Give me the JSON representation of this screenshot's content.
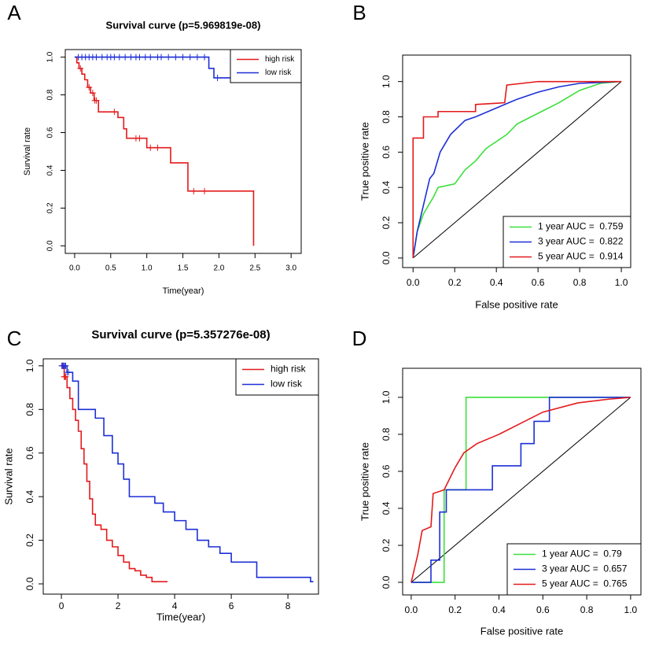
{
  "chart_data": [
    {
      "type": "survival",
      "panel_label": "A",
      "title": "Survival curve (p=5.969819e-08)",
      "xlabel": "Time(year)",
      "ylabel": "Survival rate",
      "xlim": [
        -0.13,
        3.14
      ],
      "ylim": [
        -0.04,
        1.04
      ],
      "xticks": [
        {
          "value": 0,
          "label": "0.0"
        },
        {
          "value": 0.5,
          "label": "0.5"
        },
        {
          "value": 1,
          "label": "1.0"
        },
        {
          "value": 1.5,
          "label": "1.5"
        },
        {
          "value": 2,
          "label": "2.0"
        },
        {
          "value": 2.5,
          "label": "2.5"
        },
        {
          "value": 3,
          "label": "3.0"
        }
      ],
      "yticks": [
        {
          "value": 0,
          "label": "0.0"
        },
        {
          "value": 0.2,
          "label": "0.2"
        },
        {
          "value": 0.4,
          "label": "0.4"
        },
        {
          "value": 0.6,
          "label": "0.6"
        },
        {
          "value": 0.8,
          "label": "0.8"
        },
        {
          "value": 1,
          "label": "1.0"
        }
      ],
      "legend": "top-right",
      "series": [
        {
          "name": "high risk",
          "color": "#e41a1c",
          "x": [
            0,
            0.03,
            0.06,
            0.1,
            0.14,
            0.18,
            0.22,
            0.27,
            0.33,
            0.6,
            0.68,
            0.72,
            1.0,
            1.33,
            1.57,
            2.48
          ],
          "values": [
            1,
            0.97,
            0.94,
            0.91,
            0.88,
            0.84,
            0.81,
            0.77,
            0.71,
            0.68,
            0.62,
            0.57,
            0.52,
            0.44,
            0.29,
            0
          ],
          "censor_x": [
            0.08,
            0.2,
            0.25,
            0.28,
            0.3,
            0.55,
            0.85,
            0.9,
            1.05,
            1.15,
            1.65,
            1.8
          ]
        },
        {
          "name": "low risk",
          "color": "#1c2fd6",
          "x": [
            0,
            1.86,
            1.93,
            3.14
          ],
          "values": [
            1,
            0.94,
            0.89,
            0.89
          ],
          "censor_x": [
            0.05,
            0.1,
            0.15,
            0.2,
            0.25,
            0.3,
            0.38,
            0.45,
            0.5,
            0.55,
            0.62,
            0.7,
            0.78,
            0.85,
            0.9,
            0.98,
            1.05,
            1.15,
            1.2,
            1.3,
            1.4,
            1.5,
            1.6,
            1.7,
            1.8,
            1.98
          ]
        }
      ]
    },
    {
      "type": "roc",
      "panel_label": "B",
      "xlabel": "False positive rate",
      "ylabel": "True positive rate",
      "xlim": [
        -0.05,
        1.045
      ],
      "ylim": [
        -0.054,
        1.15
      ],
      "xticks": [
        {
          "value": 0,
          "label": "0.0"
        },
        {
          "value": 0.2,
          "label": "0.2"
        },
        {
          "value": 0.4,
          "label": "0.4"
        },
        {
          "value": 0.6,
          "label": "0.6"
        },
        {
          "value": 0.8,
          "label": "0.8"
        },
        {
          "value": 1,
          "label": "1.0"
        }
      ],
      "yticks": [
        {
          "value": 0,
          "label": "0.0"
        },
        {
          "value": 0.2,
          "label": "0.2"
        },
        {
          "value": 0.4,
          "label": "0.4"
        },
        {
          "value": 0.6,
          "label": "0.6"
        },
        {
          "value": 0.8,
          "label": "0.8"
        },
        {
          "value": 1,
          "label": "1.0"
        }
      ],
      "legend": "bottom-right",
      "diagonal": true,
      "series": [
        {
          "name": "1 year AUC =  0.759",
          "color": "#3be03b",
          "x": [
            0,
            0.02,
            0.05,
            0.1,
            0.12,
            0.2,
            0.25,
            0.3,
            0.35,
            0.4,
            0.45,
            0.5,
            0.6,
            0.7,
            0.8,
            0.9,
            1
          ],
          "values": [
            0,
            0.15,
            0.25,
            0.35,
            0.4,
            0.42,
            0.5,
            0.55,
            0.62,
            0.66,
            0.7,
            0.76,
            0.82,
            0.88,
            0.95,
            0.99,
            1
          ]
        },
        {
          "name": "3 year AUC =  0.822",
          "color": "#1c2fd6",
          "x": [
            0,
            0.02,
            0.05,
            0.08,
            0.1,
            0.13,
            0.18,
            0.25,
            0.3,
            0.4,
            0.5,
            0.6,
            0.7,
            0.8,
            1
          ],
          "values": [
            0,
            0.15,
            0.3,
            0.45,
            0.48,
            0.6,
            0.7,
            0.78,
            0.8,
            0.85,
            0.9,
            0.94,
            0.97,
            0.99,
            1
          ]
        },
        {
          "name": "5 year AUC =  0.914",
          "color": "#e41a1c",
          "x": [
            0,
            0,
            0.05,
            0.05,
            0.12,
            0.12,
            0.3,
            0.3,
            0.44,
            0.45,
            0.6,
            1
          ],
          "values": [
            0,
            0.68,
            0.68,
            0.8,
            0.8,
            0.83,
            0.83,
            0.87,
            0.88,
            0.98,
            1,
            1
          ]
        }
      ]
    },
    {
      "type": "survival",
      "panel_label": "C",
      "title": "Survival curve (p=5.357276e-08)",
      "xlabel": "Time(year)",
      "ylabel": "Survival rate",
      "xlim": [
        -0.64,
        9.08
      ],
      "ylim": [
        -0.047,
        1.032
      ],
      "xticks": [
        0,
        2,
        4,
        6,
        8
      ],
      "yticks": [
        {
          "value": 0,
          "label": "0.0"
        },
        {
          "value": 0.2,
          "label": "0.2"
        },
        {
          "value": 0.4,
          "label": "0.4"
        },
        {
          "value": 0.6,
          "label": "0.6"
        },
        {
          "value": 0.8,
          "label": "0.8"
        },
        {
          "value": 1,
          "label": "1.0"
        }
      ],
      "legend": "top-right",
      "series": [
        {
          "name": "high risk",
          "color": "#e41a1c",
          "x": [
            0,
            0.1,
            0.2,
            0.3,
            0.4,
            0.5,
            0.6,
            0.7,
            0.8,
            0.9,
            1.0,
            1.1,
            1.2,
            1.4,
            1.6,
            1.8,
            2.0,
            2.2,
            2.4,
            2.6,
            2.8,
            3.0,
            3.2,
            3.75
          ],
          "values": [
            1,
            0.95,
            0.9,
            0.85,
            0.8,
            0.75,
            0.7,
            0.62,
            0.55,
            0.47,
            0.39,
            0.32,
            0.27,
            0.25,
            0.2,
            0.17,
            0.13,
            0.1,
            0.07,
            0.06,
            0.04,
            0.03,
            0.01,
            0.01
          ],
          "censor_x": [
            0.02,
            0.05,
            0.08,
            0.1,
            0.12,
            0.15
          ]
        },
        {
          "name": "low risk",
          "color": "#1c2fd6",
          "x": [
            0,
            0.2,
            0.4,
            0.6,
            1.2,
            1.5,
            1.8,
            2.0,
            2.2,
            2.4,
            3.3,
            3.6,
            4.0,
            4.4,
            4.8,
            5.2,
            5.6,
            6.0,
            6.9,
            8.8,
            8.9
          ],
          "values": [
            1,
            0.97,
            0.93,
            0.8,
            0.76,
            0.68,
            0.6,
            0.55,
            0.48,
            0.4,
            0.37,
            0.33,
            0.29,
            0.25,
            0.2,
            0.17,
            0.14,
            0.1,
            0.03,
            0.01,
            0.01
          ],
          "censor_x": [
            0.02,
            0.05,
            0.08,
            0.12,
            0.15,
            0.2,
            0.25
          ]
        }
      ]
    },
    {
      "type": "roc",
      "panel_label": "D",
      "xlabel": "False positive rate",
      "ylabel": "True positive rate",
      "xlim": [
        -0.039,
        1.047
      ],
      "ylim": [
        -0.068,
        1.157
      ],
      "xticks": [
        {
          "value": 0,
          "label": "0.0"
        },
        {
          "value": 0.2,
          "label": "0.2"
        },
        {
          "value": 0.4,
          "label": "0.4"
        },
        {
          "value": 0.6,
          "label": "0.6"
        },
        {
          "value": 0.8,
          "label": "0.8"
        },
        {
          "value": 1,
          "label": "1.0"
        }
      ],
      "yticks": [
        {
          "value": 0,
          "label": "0.0"
        },
        {
          "value": 0.2,
          "label": "0.2"
        },
        {
          "value": 0.4,
          "label": "0.4"
        },
        {
          "value": 0.6,
          "label": "0.6"
        },
        {
          "value": 0.8,
          "label": "0.8"
        },
        {
          "value": 1,
          "label": "1.0"
        }
      ],
      "legend": "bottom-right",
      "diagonal": true,
      "series": [
        {
          "name": "1 year AUC =  0.79",
          "color": "#3be03b",
          "x": [
            0,
            0.15,
            0.15,
            0.25,
            0.25,
            1
          ],
          "values": [
            0,
            0,
            0.5,
            0.5,
            1,
            1
          ]
        },
        {
          "name": "3 year AUC =  0.657",
          "color": "#1c2fd6",
          "x": [
            0,
            0.09,
            0.09,
            0.13,
            0.13,
            0.16,
            0.16,
            0.37,
            0.37,
            0.5,
            0.5,
            0.56,
            0.56,
            0.63,
            0.63,
            1
          ],
          "values": [
            0,
            0,
            0.12,
            0.12,
            0.38,
            0.38,
            0.5,
            0.5,
            0.63,
            0.63,
            0.75,
            0.75,
            0.87,
            0.87,
            1,
            1
          ]
        },
        {
          "name": "5 year AUC =  0.765",
          "color": "#e41a1c",
          "x": [
            0,
            0.03,
            0.05,
            0.09,
            0.1,
            0.15,
            0.2,
            0.24,
            0.3,
            0.4,
            0.5,
            0.6,
            0.76,
            0.9,
            1
          ],
          "values": [
            0,
            0.15,
            0.28,
            0.3,
            0.48,
            0.5,
            0.62,
            0.7,
            0.75,
            0.8,
            0.86,
            0.92,
            0.97,
            0.99,
            1
          ]
        }
      ]
    }
  ]
}
